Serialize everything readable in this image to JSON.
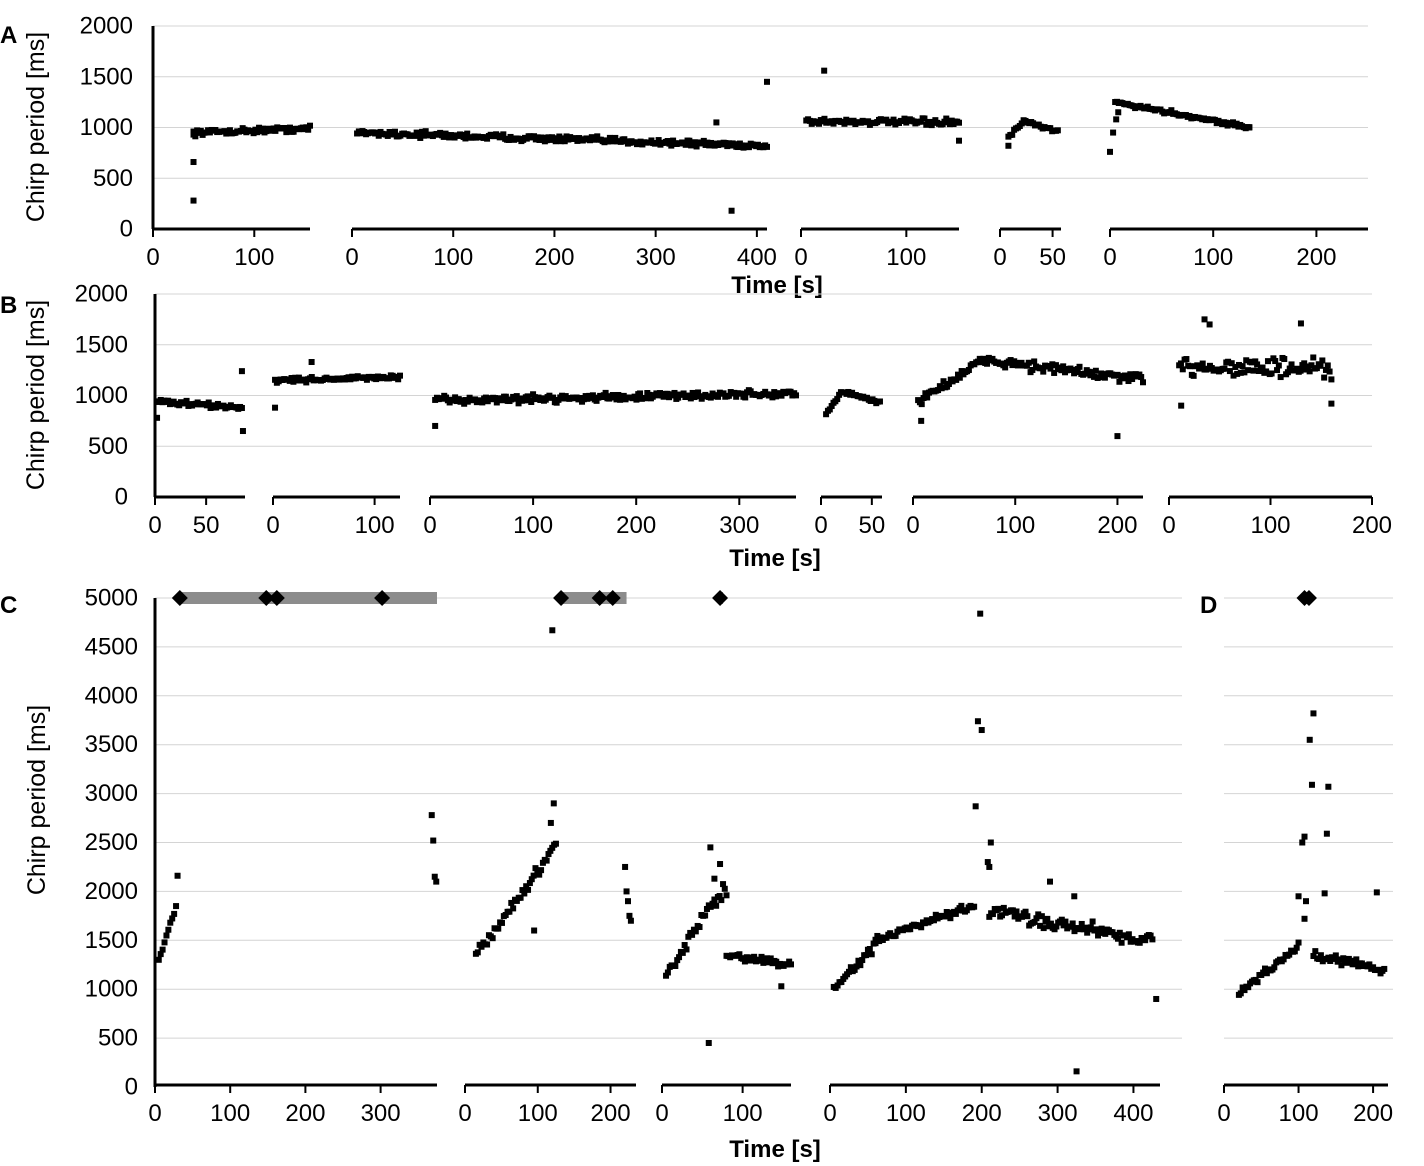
{
  "y_label": "Chirp period [ms]",
  "x_label": "Time [s]",
  "panel_labels": [
    "A",
    "B",
    "C",
    "D"
  ],
  "colors": {
    "points": "#000000",
    "bar": "#8c8c8c",
    "grid": "#d4d4d4"
  },
  "chart_data": [
    {
      "panel": "A",
      "type": "scatter",
      "ylim": [
        0,
        2000
      ],
      "yticks": [
        0,
        500,
        1000,
        1500,
        2000
      ],
      "grid": true,
      "subplots": [
        {
          "xlim": [
            0,
            155
          ],
          "xticks": [
            0,
            100
          ],
          "segments": [
            {
              "t0": 40,
              "t1": 155,
              "start": 950,
              "end": 990,
              "noise": 40,
              "tail": []
            }
          ],
          "outliers": [
            [
              40,
              280
            ],
            [
              40,
              660
            ],
            [
              40,
              930
            ]
          ]
        },
        {
          "xlim": [
            0,
            410
          ],
          "xticks": [
            0,
            100,
            200,
            300,
            400
          ],
          "segments": [
            {
              "t0": 5,
              "t1": 410,
              "start": 950,
              "end": 820,
              "noise": 45,
              "tail": []
            }
          ],
          "outliers": [
            [
              410,
              1450
            ],
            [
              375,
              180
            ],
            [
              360,
              1050
            ]
          ]
        },
        {
          "xlim": [
            0,
            150
          ],
          "xticks": [
            0,
            100
          ],
          "segments": [
            {
              "t0": 5,
              "t1": 150,
              "start": 1060,
              "end": 1050,
              "noise": 45,
              "tail": []
            }
          ],
          "outliers": [
            [
              22,
              1560
            ],
            [
              150,
              870
            ]
          ]
        },
        {
          "xlim": [
            0,
            58
          ],
          "xticks": [
            0,
            50
          ],
          "segments": [
            {
              "t0": 8,
              "t1": 55,
              "start": 900,
              "end": 960,
              "noise": 25,
              "shape": "arch",
              "peak": 1060
            }
          ],
          "outliers": [
            [
              8,
              820
            ]
          ]
        },
        {
          "xlim": [
            0,
            250
          ],
          "xticks": [
            0,
            100,
            200
          ],
          "segments": [
            {
              "t0": 5,
              "t1": 135,
              "start": 1250,
              "end": 1000,
              "noise": 30,
              "tail": []
            }
          ],
          "outliers": [
            [
              0,
              760
            ],
            [
              3,
              950
            ],
            [
              6,
              1080
            ],
            [
              8,
              1150
            ],
            [
              135,
              1000
            ]
          ]
        }
      ]
    },
    {
      "panel": "B",
      "type": "scatter",
      "ylim": [
        0,
        2000
      ],
      "yticks": [
        0,
        500,
        1000,
        1500,
        2000
      ],
      "grid": true,
      "subplots": [
        {
          "xlim": [
            0,
            88
          ],
          "xticks": [
            0,
            50
          ],
          "segments": [
            {
              "t0": 2,
              "t1": 85,
              "start": 940,
              "end": 880,
              "noise": 40,
              "tail": []
            }
          ],
          "outliers": [
            [
              85,
              1240
            ],
            [
              86,
              650
            ],
            [
              2,
              780
            ]
          ]
        },
        {
          "xlim": [
            0,
            125
          ],
          "xticks": [
            0,
            100
          ],
          "segments": [
            {
              "t0": 2,
              "t1": 125,
              "start": 1150,
              "end": 1180,
              "noise": 35,
              "tail": []
            }
          ],
          "outliers": [
            [
              2,
              880
            ],
            [
              38,
              1330
            ]
          ]
        },
        {
          "xlim": [
            0,
            355
          ],
          "xticks": [
            0,
            100,
            200,
            300
          ],
          "segments": [
            {
              "t0": 5,
              "t1": 355,
              "start": 950,
              "end": 1020,
              "noise": 55,
              "tail": []
            }
          ],
          "outliers": [
            [
              5,
              700
            ]
          ]
        },
        {
          "xlim": [
            0,
            60
          ],
          "xticks": [
            0,
            50
          ],
          "segments": [
            {
              "t0": 5,
              "t1": 58,
              "start": 820,
              "end": 930,
              "noise": 25,
              "shape": "arch",
              "peak": 1040
            }
          ],
          "outliers": []
        },
        {
          "xlim": [
            0,
            225
          ],
          "xticks": [
            0,
            100,
            200
          ],
          "segments": [
            {
              "t0": 5,
              "t1": 225,
              "start": 950,
              "end": 1150,
              "noise": 80,
              "shape": "arch",
              "peak": 1350
            }
          ],
          "outliers": [
            [
              200,
              600
            ],
            [
              8,
              750
            ]
          ]
        },
        {
          "xlim": [
            0,
            200
          ],
          "xticks": [
            0,
            100,
            200
          ],
          "segments": [
            {
              "t0": 10,
              "t1": 160,
              "start": 1300,
              "end": 1250,
              "noise": 150,
              "tail": []
            }
          ],
          "outliers": [
            [
              35,
              1750
            ],
            [
              40,
              1700
            ],
            [
              12,
              900
            ],
            [
              160,
              920
            ],
            [
              130,
              1710
            ]
          ]
        }
      ]
    },
    {
      "panel": "C",
      "type": "scatter",
      "ylim": [
        0,
        5000
      ],
      "yticks": [
        0,
        500,
        1000,
        1500,
        2000,
        2500,
        3000,
        3500,
        4000,
        4500,
        5000
      ],
      "grid": true,
      "subplots": [
        {
          "xlim": [
            0,
            375
          ],
          "xticks": [
            0,
            100,
            200,
            300
          ],
          "segments": [
            {
              "t0": 5,
              "t1": 28,
              "start": 1280,
              "end": 1850,
              "noise": 40,
              "tail": []
            }
          ],
          "outliers": [
            [
              30,
              2160
            ],
            [
              368,
              2780
            ],
            [
              370,
              2520
            ],
            [
              372,
              2150
            ],
            [
              374,
              2100
            ]
          ],
          "bars": [
            [
              33,
              375
            ]
          ],
          "markers": [
            33,
            148,
            162,
            302
          ]
        },
        {
          "xlim": [
            0,
            235
          ],
          "xticks": [
            0,
            100,
            200
          ],
          "segments": [
            {
              "t0": 15,
              "t1": 125,
              "start": 1350,
              "end": 2450,
              "noise": 90,
              "tail": []
            }
          ],
          "outliers": [
            [
              120,
              4670
            ],
            [
              122,
              2900
            ],
            [
              118,
              2700
            ],
            [
              95,
              1600
            ],
            [
              220,
              2250
            ],
            [
              222,
              2000
            ],
            [
              224,
              1900
            ],
            [
              226,
              1750
            ],
            [
              228,
              1700
            ]
          ],
          "bars": [
            [
              132,
              222
            ]
          ],
          "markers": [
            132,
            185,
            203
          ]
        },
        {
          "xlim": [
            0,
            160
          ],
          "xticks": [
            0,
            100
          ],
          "segments": [
            {
              "t0": 5,
              "t1": 65,
              "start": 1150,
              "end": 1900,
              "noise": 80,
              "tail": []
            },
            {
              "t0": 65,
              "t1": 80,
              "start": 1900,
              "end": 2000,
              "noise": 150,
              "tail": []
            },
            {
              "t0": 80,
              "t1": 160,
              "start": 1350,
              "end": 1250,
              "noise": 60,
              "tail": []
            }
          ],
          "outliers": [
            [
              60,
              2450
            ],
            [
              65,
              2130
            ],
            [
              72,
              2280
            ],
            [
              58,
              450
            ],
            [
              148,
              1030
            ]
          ],
          "bars": [
            [
              72,
              74
            ]
          ],
          "markers": [
            72
          ]
        },
        {
          "xlim": [
            0,
            435
          ],
          "xticks": [
            0,
            100,
            200,
            300,
            400
          ],
          "segments": [
            {
              "t0": 5,
              "t1": 60,
              "start": 1000,
              "end": 1450,
              "noise": 60,
              "tail": []
            },
            {
              "t0": 60,
              "t1": 190,
              "start": 1500,
              "end": 1850,
              "noise": 60,
              "tail": []
            },
            {
              "t0": 210,
              "t1": 425,
              "start": 1800,
              "end": 1500,
              "noise": 110,
              "tail": []
            }
          ],
          "outliers": [
            [
              198,
              4840
            ],
            [
              195,
              3740
            ],
            [
              200,
              3650
            ],
            [
              192,
              2870
            ],
            [
              212,
              2500
            ],
            [
              210,
              2250
            ],
            [
              208,
              2300
            ],
            [
              325,
              160
            ],
            [
              430,
              900
            ],
            [
              290,
              2100
            ],
            [
              322,
              1950
            ]
          ]
        }
      ]
    },
    {
      "panel": "D",
      "type": "scatter",
      "ylim": [
        0,
        5000
      ],
      "yticks": [
        0,
        500,
        1000,
        1500,
        2000,
        2500,
        3000,
        3500,
        4000,
        4500,
        5000
      ],
      "grid": true,
      "subplots": [
        {
          "xlim": [
            0,
            220
          ],
          "xticks": [
            0,
            100,
            200
          ],
          "segments": [
            {
              "t0": 20,
              "t1": 100,
              "start": 950,
              "end": 1450,
              "noise": 70,
              "tail": []
            },
            {
              "t0": 120,
              "t1": 215,
              "start": 1350,
              "end": 1200,
              "noise": 60,
              "tail": []
            }
          ],
          "outliers": [
            [
              110,
              1900
            ],
            [
              105,
              2500
            ],
            [
              108,
              2560
            ],
            [
              115,
              3550
            ],
            [
              120,
              3820
            ],
            [
              118,
              3090
            ],
            [
              140,
              3070
            ],
            [
              138,
              2590
            ],
            [
              135,
              1980
            ],
            [
              100,
              1950
            ],
            [
              205,
              1990
            ],
            [
              108,
              1720
            ]
          ],
          "bars": [
            [
              108,
              112
            ]
          ],
          "markers": [
            108,
            114
          ]
        }
      ]
    }
  ]
}
